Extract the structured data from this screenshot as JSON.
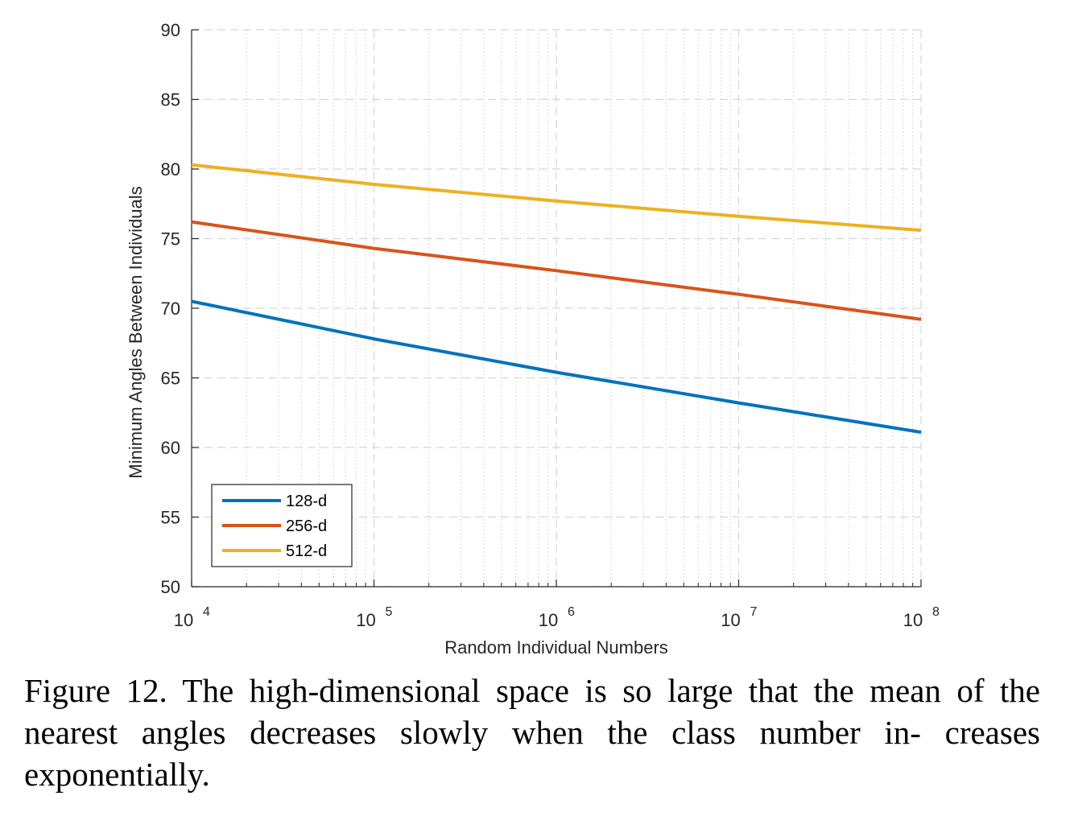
{
  "chart_data": {
    "type": "line",
    "xscale": "log",
    "xlim": [
      10000,
      100000000
    ],
    "ylim": [
      50,
      90
    ],
    "xlabel": "Random Individual Numbers",
    "ylabel": "Minimum Angles Between Individuals",
    "x_ticks": [
      {
        "base": "10",
        "exp": "4",
        "value": 10000
      },
      {
        "base": "10",
        "exp": "5",
        "value": 100000
      },
      {
        "base": "10",
        "exp": "6",
        "value": 1000000
      },
      {
        "base": "10",
        "exp": "7",
        "value": 10000000
      },
      {
        "base": "10",
        "exp": "8",
        "value": 100000000
      }
    ],
    "y_ticks": [
      "50",
      "55",
      "60",
      "65",
      "70",
      "75",
      "80",
      "85",
      "90"
    ],
    "grid": true,
    "legend_position": "bottom-left",
    "series": [
      {
        "name": "128-d",
        "color": "#0072BD",
        "x": [
          10000,
          100000,
          1000000,
          10000000,
          100000000
        ],
        "y": [
          70.5,
          67.8,
          65.4,
          63.2,
          61.1
        ]
      },
      {
        "name": "256-d",
        "color": "#D95319",
        "x": [
          10000,
          100000,
          1000000,
          10000000,
          100000000
        ],
        "y": [
          76.2,
          74.3,
          72.7,
          71.0,
          69.2
        ]
      },
      {
        "name": "512-d",
        "color": "#EDB120",
        "x": [
          10000,
          100000,
          1000000,
          10000000,
          100000000
        ],
        "y": [
          80.3,
          78.9,
          77.7,
          76.6,
          75.6
        ]
      }
    ]
  },
  "caption": {
    "text": "Figure 12. The high-dimensional space is so large that the mean of the nearest angles decreases slowly when the class number in- creases exponentially."
  }
}
